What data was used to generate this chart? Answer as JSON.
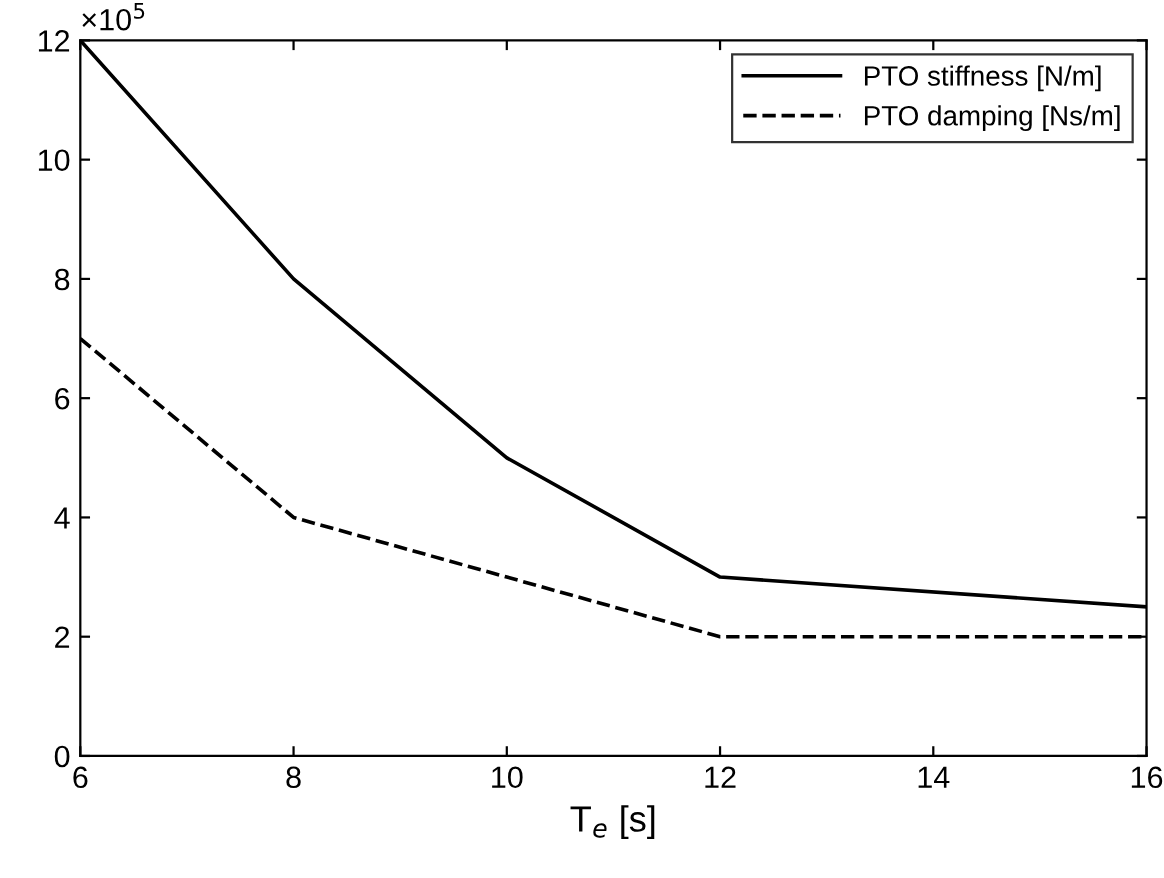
{
  "chart_data": {
    "type": "line",
    "xlabel": "T$_{e}$ [s]",
    "x": [
      6,
      8,
      10,
      12,
      16
    ],
    "series": [
      {
        "name": "PTO stiffness [N/m]",
        "color": "#000000",
        "values": [
          12,
          8,
          5,
          3,
          2.5
        ],
        "line_style": "solid"
      },
      {
        "name": "PTO damping [Ns/m]",
        "color": "#000000",
        "values": [
          7,
          4,
          3,
          2,
          2
        ],
        "line_style": "dashed"
      }
    ],
    "xlim": [
      6,
      16
    ],
    "xticks": [
      6,
      8,
      10,
      12,
      14,
      16
    ],
    "ylim": [
      0,
      12
    ],
    "yticks": [
      0,
      2,
      4,
      6,
      8,
      10,
      12
    ],
    "annotations": [
      "×10$^{5}$"
    ],
    "grid": false,
    "legend": "top right",
    "marker": "none"
  }
}
